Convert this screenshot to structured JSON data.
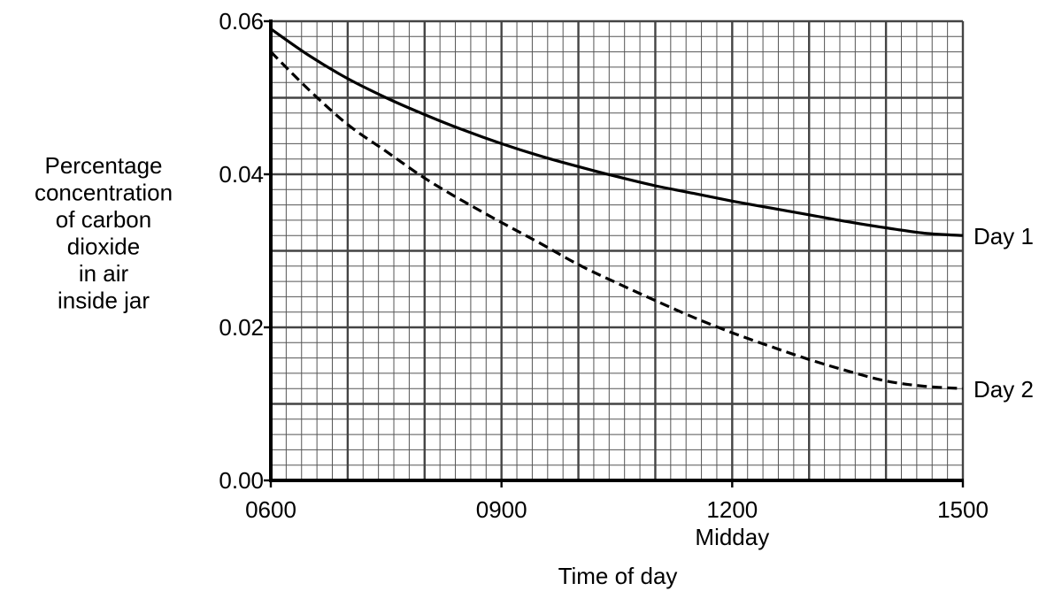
{
  "chart_data": {
    "type": "line",
    "xlabel": "Time of day",
    "ylabel_lines": [
      "Percentage",
      "concentration",
      "of carbon",
      "dioxide",
      "in air",
      "inside jar"
    ],
    "x_ticks": [
      {
        "value": 6,
        "label": "0600"
      },
      {
        "value": 9,
        "label": "0900"
      },
      {
        "value": 12,
        "label": "1200",
        "sublabel": "Midday"
      },
      {
        "value": 15,
        "label": "1500"
      }
    ],
    "y_ticks": [
      {
        "value": 0.0,
        "label": "0.00"
      },
      {
        "value": 0.02,
        "label": "0.02"
      },
      {
        "value": 0.04,
        "label": "0.04"
      },
      {
        "value": 0.06,
        "label": "0.06"
      }
    ],
    "xlim": [
      6,
      15
    ],
    "ylim": [
      0,
      0.06
    ],
    "grid": true,
    "series": [
      {
        "name": "Day 1",
        "style": "solid",
        "x": [
          6,
          6.5,
          7,
          7.5,
          8,
          8.5,
          9,
          9.5,
          10,
          10.5,
          11,
          11.5,
          12,
          12.5,
          13,
          13.5,
          14,
          14.5,
          15
        ],
        "y": [
          0.059,
          0.0555,
          0.0525,
          0.05,
          0.0478,
          0.0458,
          0.044,
          0.0424,
          0.041,
          0.0397,
          0.0385,
          0.0375,
          0.0365,
          0.0356,
          0.0347,
          0.0338,
          0.033,
          0.0323,
          0.032
        ]
      },
      {
        "name": "Day 2",
        "style": "dashed",
        "x": [
          6,
          6.5,
          7,
          7.5,
          8,
          8.5,
          9,
          9.5,
          10,
          10.5,
          11,
          11.5,
          12,
          12.5,
          13,
          13.5,
          14,
          14.5,
          15
        ],
        "y": [
          0.056,
          0.051,
          0.0465,
          0.043,
          0.0395,
          0.0365,
          0.0337,
          0.031,
          0.0282,
          0.0258,
          0.0235,
          0.0213,
          0.0193,
          0.0175,
          0.0158,
          0.0143,
          0.013,
          0.0123,
          0.012
        ]
      }
    ]
  }
}
